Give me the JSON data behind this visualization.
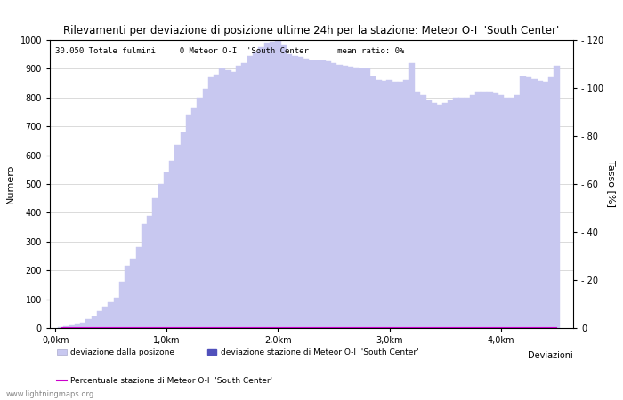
{
  "title": "Rilevamenti per deviazione di posizione ultime 24h per la stazione: Meteor O-I  'South Center'",
  "info_text": "30.050 Totale fulmini     0 Meteor O-I  'South Center'     mean ratio: 0%",
  "xlabel": "Deviazioni",
  "ylabel_left": "Numero",
  "ylabel_right": "Tasso [%]",
  "ylim_left": [
    0,
    1000
  ],
  "ylim_right": [
    0,
    120
  ],
  "bar_width": 0.055,
  "x_tick_labels": [
    "0,0km",
    "1,0km",
    "2,0km",
    "3,0km",
    "4,0km"
  ],
  "x_tick_positions": [
    0.0,
    1.0,
    2.0,
    3.0,
    4.0
  ],
  "bar_color_light": "#c8c8f0",
  "bar_color_dark": "#5050bb",
  "line_color": "#cc00cc",
  "background_color": "#ffffff",
  "watermark": "www.lightningmaps.org",
  "legend_label_light": "deviazione dalla posizone",
  "legend_label_dark": "deviazione stazione di Meteor O-I  'South Center'",
  "legend_label_line": "Percentuale stazione di Meteor O-I  'South Center'",
  "bar_positions": [
    0.05,
    0.1,
    0.15,
    0.2,
    0.25,
    0.3,
    0.35,
    0.4,
    0.45,
    0.5,
    0.55,
    0.6,
    0.65,
    0.7,
    0.75,
    0.8,
    0.85,
    0.9,
    0.95,
    1.0,
    1.05,
    1.1,
    1.15,
    1.2,
    1.25,
    1.3,
    1.35,
    1.4,
    1.45,
    1.5,
    1.55,
    1.6,
    1.65,
    1.7,
    1.75,
    1.8,
    1.85,
    1.9,
    1.95,
    2.0,
    2.05,
    2.1,
    2.15,
    2.2,
    2.25,
    2.3,
    2.35,
    2.4,
    2.45,
    2.5,
    2.55,
    2.6,
    2.65,
    2.7,
    2.75,
    2.8,
    2.85,
    2.9,
    2.95,
    3.0,
    3.05,
    3.1,
    3.15,
    3.2,
    3.25,
    3.3,
    3.35,
    3.4,
    3.45,
    3.5,
    3.55,
    3.6,
    3.65,
    3.7,
    3.75,
    3.8,
    3.85,
    3.9,
    3.95,
    4.0,
    4.05,
    4.1,
    4.15,
    4.2,
    4.25,
    4.3,
    4.35,
    4.4,
    4.45,
    4.5
  ],
  "bar_heights": [
    2,
    5,
    8,
    15,
    20,
    30,
    40,
    60,
    75,
    90,
    105,
    160,
    215,
    240,
    280,
    360,
    390,
    450,
    500,
    540,
    580,
    635,
    680,
    740,
    765,
    800,
    830,
    870,
    880,
    900,
    895,
    890,
    910,
    920,
    945,
    960,
    975,
    990,
    995,
    1000,
    980,
    950,
    945,
    940,
    935,
    930,
    930,
    930,
    925,
    920,
    915,
    910,
    908,
    905,
    900,
    900,
    875,
    860,
    858,
    860,
    855,
    855,
    860,
    920,
    820,
    810,
    790,
    780,
    775,
    780,
    790,
    800,
    800,
    800,
    810,
    820,
    820,
    820,
    815,
    810,
    800,
    800,
    810,
    875,
    870,
    865,
    858,
    855,
    870,
    910
  ],
  "line_values": [
    0,
    0,
    0,
    0,
    0,
    0,
    0,
    0,
    0,
    0,
    0,
    0,
    0,
    0,
    0,
    0,
    0,
    0,
    0,
    0,
    0,
    0,
    0,
    0,
    0,
    0,
    0,
    0,
    0,
    0,
    0,
    0,
    0,
    0,
    0,
    0,
    0,
    0,
    0,
    0,
    0,
    0,
    0,
    0,
    0,
    0,
    0,
    0,
    0,
    0,
    0,
    0,
    0,
    0,
    0,
    0,
    0,
    0,
    0,
    0,
    0,
    0,
    0,
    0,
    0,
    0,
    0,
    0,
    0,
    0,
    0,
    0,
    0,
    0,
    0,
    0,
    0,
    0,
    0,
    0,
    0,
    0,
    0,
    0,
    0,
    0,
    0,
    0,
    0,
    0
  ],
  "right_ytick_positions": [
    0,
    20,
    40,
    60,
    80,
    100,
    120
  ],
  "right_ytick_labels": [
    "0",
    "- 20",
    "- 40",
    "- 60",
    "- 80",
    "- 100",
    "- 120"
  ]
}
